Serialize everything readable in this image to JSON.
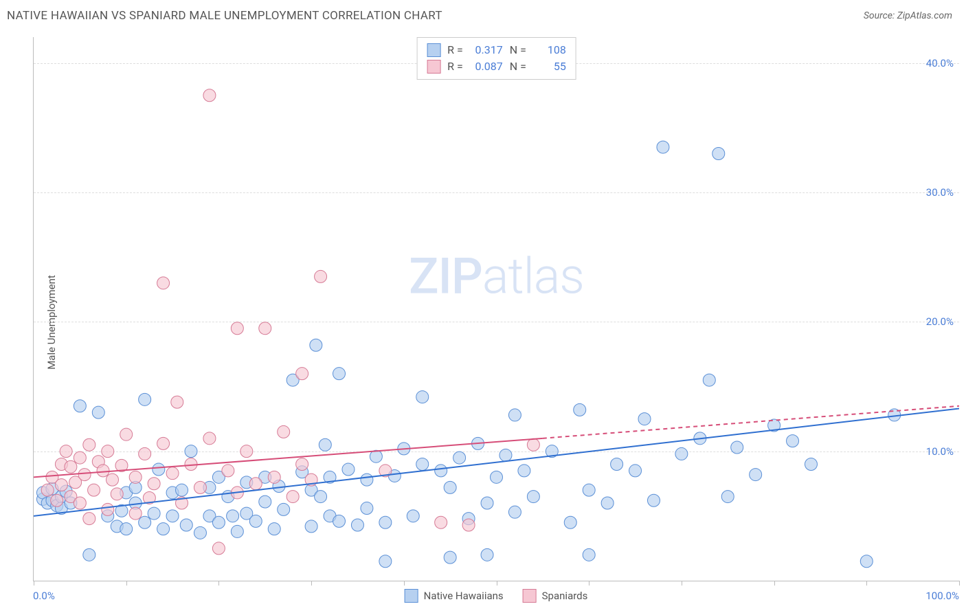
{
  "chart": {
    "type": "scatter",
    "title": "NATIVE HAWAIIAN VS SPANIARD MALE UNEMPLOYMENT CORRELATION CHART",
    "source_label": "Source: ZipAtlas.com",
    "y_axis_label": "Male Unemployment",
    "watermark_a": "ZIP",
    "watermark_b": "atlas",
    "background_color": "#ffffff",
    "grid_color": "#dddddd",
    "axis_color": "#bbbbbb",
    "tick_label_color": "#4a7dd6",
    "x_range": [
      0,
      100
    ],
    "y_range": [
      0,
      42
    ],
    "x_ticks": [
      0,
      10,
      20,
      30,
      40,
      50,
      60,
      70,
      80,
      90,
      100
    ],
    "x_tick_labels": {
      "min": "0.0%",
      "max": "100.0%"
    },
    "y_ticks": [
      10,
      20,
      30,
      40
    ],
    "y_tick_labels": [
      "10.0%",
      "20.0%",
      "30.0%",
      "40.0%"
    ],
    "legend": [
      {
        "label": "Native Hawaiians",
        "fill": "#b6d0f0",
        "stroke": "#5a8fd6"
      },
      {
        "label": "Spaniards",
        "fill": "#f6c7d3",
        "stroke": "#d67a95"
      }
    ],
    "stats": [
      {
        "swatch_fill": "#b6d0f0",
        "swatch_stroke": "#5a8fd6",
        "r_label": "R =",
        "r": "0.317",
        "n_label": "N =",
        "n": "108"
      },
      {
        "swatch_fill": "#f6c7d3",
        "swatch_stroke": "#d67a95",
        "r_label": "R =",
        "r": "0.087",
        "n_label": "N =",
        "n": "55"
      }
    ],
    "series": [
      {
        "name": "Native Hawaiians",
        "marker_fill": "#b6d0f0",
        "marker_stroke": "#5a8fd6",
        "marker_opacity": 0.65,
        "marker_radius": 9,
        "trend": {
          "solid_from": [
            0,
            5.0
          ],
          "solid_to": [
            100,
            13.3
          ],
          "stroke": "#2f6fd0",
          "width": 2
        },
        "points": [
          [
            1,
            6.3
          ],
          [
            1,
            6.8
          ],
          [
            1.5,
            6.0
          ],
          [
            2,
            6.2
          ],
          [
            2,
            7.1
          ],
          [
            2.5,
            5.8
          ],
          [
            3,
            6.5
          ],
          [
            3,
            5.6
          ],
          [
            3.5,
            6.9
          ],
          [
            4,
            6.0
          ],
          [
            5,
            13.5
          ],
          [
            6,
            2.0
          ],
          [
            7,
            13.0
          ],
          [
            8,
            5.0
          ],
          [
            9,
            4.2
          ],
          [
            9.5,
            5.4
          ],
          [
            10,
            4.0
          ],
          [
            10,
            6.8
          ],
          [
            11,
            6.0
          ],
          [
            11,
            7.2
          ],
          [
            12,
            14.0
          ],
          [
            12,
            4.5
          ],
          [
            13,
            5.2
          ],
          [
            13.5,
            8.6
          ],
          [
            14,
            4.0
          ],
          [
            15,
            6.8
          ],
          [
            15,
            5.0
          ],
          [
            16,
            7.0
          ],
          [
            16.5,
            4.3
          ],
          [
            17,
            10.0
          ],
          [
            18,
            3.7
          ],
          [
            19,
            5.0
          ],
          [
            19,
            7.2
          ],
          [
            20,
            4.5
          ],
          [
            20,
            8.0
          ],
          [
            21,
            6.5
          ],
          [
            21.5,
            5.0
          ],
          [
            22,
            3.8
          ],
          [
            23,
            7.6
          ],
          [
            23,
            5.2
          ],
          [
            24,
            4.6
          ],
          [
            25,
            6.1
          ],
          [
            25,
            8.0
          ],
          [
            26,
            4.0
          ],
          [
            26.5,
            7.3
          ],
          [
            27,
            5.5
          ],
          [
            28,
            15.5
          ],
          [
            29,
            8.4
          ],
          [
            30,
            4.2
          ],
          [
            30,
            7.0
          ],
          [
            30.5,
            18.2
          ],
          [
            31,
            6.5
          ],
          [
            31.5,
            10.5
          ],
          [
            32,
            8.0
          ],
          [
            32,
            5.0
          ],
          [
            33,
            4.6
          ],
          [
            33,
            16.0
          ],
          [
            34,
            8.6
          ],
          [
            35,
            4.3
          ],
          [
            36,
            7.8
          ],
          [
            36,
            5.6
          ],
          [
            37,
            9.6
          ],
          [
            38,
            4.5
          ],
          [
            38,
            1.5
          ],
          [
            39,
            8.1
          ],
          [
            40,
            10.2
          ],
          [
            41,
            5.0
          ],
          [
            42,
            14.2
          ],
          [
            42,
            9.0
          ],
          [
            44,
            8.5
          ],
          [
            45,
            1.8
          ],
          [
            45,
            7.2
          ],
          [
            46,
            9.5
          ],
          [
            47,
            4.8
          ],
          [
            48,
            10.6
          ],
          [
            49,
            6.0
          ],
          [
            49,
            2.0
          ],
          [
            50,
            8.0
          ],
          [
            51,
            9.7
          ],
          [
            52,
            5.3
          ],
          [
            52,
            12.8
          ],
          [
            53,
            8.5
          ],
          [
            54,
            6.5
          ],
          [
            56,
            10.0
          ],
          [
            58,
            4.5
          ],
          [
            59,
            13.2
          ],
          [
            60,
            7.0
          ],
          [
            60,
            2.0
          ],
          [
            62,
            6.0
          ],
          [
            63,
            9.0
          ],
          [
            65,
            8.5
          ],
          [
            66,
            12.5
          ],
          [
            67,
            6.2
          ],
          [
            68,
            33.5
          ],
          [
            70,
            9.8
          ],
          [
            72,
            11.0
          ],
          [
            73,
            15.5
          ],
          [
            74,
            33.0
          ],
          [
            75,
            6.5
          ],
          [
            76,
            10.3
          ],
          [
            78,
            8.2
          ],
          [
            80,
            12.0
          ],
          [
            82,
            10.8
          ],
          [
            84,
            9.0
          ],
          [
            90,
            1.5
          ],
          [
            93,
            12.8
          ]
        ]
      },
      {
        "name": "Spaniards",
        "marker_fill": "#f6c7d3",
        "marker_stroke": "#d67a95",
        "marker_opacity": 0.65,
        "marker_radius": 9,
        "trend": {
          "solid_from": [
            0,
            8.0
          ],
          "solid_to": [
            55,
            11.0
          ],
          "dash_from": [
            55,
            11.0
          ],
          "dash_to": [
            100,
            13.5
          ],
          "stroke": "#d64d78",
          "width": 2
        },
        "points": [
          [
            1.5,
            7.0
          ],
          [
            2,
            8.0
          ],
          [
            2.5,
            6.2
          ],
          [
            3,
            9.0
          ],
          [
            3,
            7.4
          ],
          [
            3.5,
            10.0
          ],
          [
            4,
            6.5
          ],
          [
            4,
            8.8
          ],
          [
            4.5,
            7.6
          ],
          [
            5,
            9.5
          ],
          [
            5,
            6.0
          ],
          [
            5.5,
            8.2
          ],
          [
            6,
            10.5
          ],
          [
            6,
            4.8
          ],
          [
            6.5,
            7.0
          ],
          [
            7,
            9.2
          ],
          [
            7.5,
            8.5
          ],
          [
            8,
            5.5
          ],
          [
            8,
            10.0
          ],
          [
            8.5,
            7.8
          ],
          [
            9,
            6.7
          ],
          [
            9.5,
            8.9
          ],
          [
            10,
            11.3
          ],
          [
            11,
            5.2
          ],
          [
            11,
            8.0
          ],
          [
            12,
            9.8
          ],
          [
            12.5,
            6.4
          ],
          [
            13,
            7.5
          ],
          [
            14,
            10.6
          ],
          [
            14,
            23.0
          ],
          [
            15,
            8.3
          ],
          [
            15.5,
            13.8
          ],
          [
            16,
            6.0
          ],
          [
            17,
            9.0
          ],
          [
            18,
            7.2
          ],
          [
            19,
            37.5
          ],
          [
            19,
            11.0
          ],
          [
            20,
            2.5
          ],
          [
            21,
            8.5
          ],
          [
            22,
            6.8
          ],
          [
            22,
            19.5
          ],
          [
            23,
            10.0
          ],
          [
            24,
            7.5
          ],
          [
            25,
            19.5
          ],
          [
            26,
            8.0
          ],
          [
            27,
            11.5
          ],
          [
            28,
            6.5
          ],
          [
            29,
            9.0
          ],
          [
            29,
            16.0
          ],
          [
            30,
            7.8
          ],
          [
            31,
            23.5
          ],
          [
            38,
            8.5
          ],
          [
            44,
            4.5
          ],
          [
            47,
            4.3
          ],
          [
            54,
            10.5
          ]
        ]
      }
    ]
  }
}
